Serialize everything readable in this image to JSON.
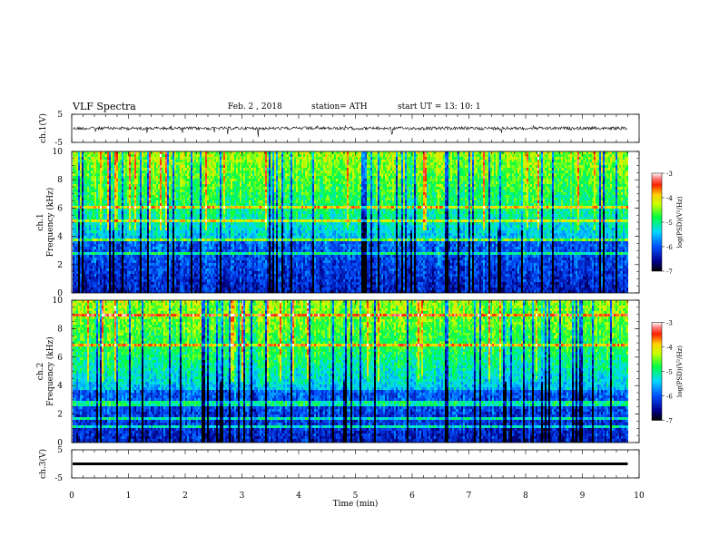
{
  "header": {
    "title": "VLF Spectra",
    "date": "Feb. 2 , 2018",
    "station": "station= ATH",
    "start": "start UT =   13: 10: 1"
  },
  "chart_data": [
    {
      "type": "line",
      "panel": "ch1-waveform",
      "ylabel": "ch.1(V)",
      "ylim": [
        -5,
        5
      ],
      "yticks": [
        -5,
        5
      ],
      "xlim": [
        0,
        10
      ],
      "baseline": 0,
      "x_end": 9.8,
      "color": "#000000"
    },
    {
      "type": "heatmap",
      "panel": "ch1-spectrogram",
      "ylabel": "ch.1\nFrequency  (kHz)",
      "ylim": [
        0,
        10
      ],
      "yticks": [
        0,
        2,
        4,
        6,
        8,
        10
      ],
      "xlim": [
        0,
        10
      ],
      "x_end": 9.8,
      "colorbar": {
        "label": "log(PSD)(V²/Hz)",
        "range": [
          -7,
          -3
        ],
        "ticks": [
          -3,
          -4,
          -5,
          -6,
          -7
        ]
      }
    },
    {
      "type": "heatmap",
      "panel": "ch2-spectrogram",
      "ylabel": "ch.2\nFrequency  (kHz)",
      "ylim": [
        0,
        10
      ],
      "yticks": [
        0,
        2,
        4,
        6,
        8,
        10
      ],
      "xlim": [
        0,
        10
      ],
      "x_end": 9.8,
      "colorbar": {
        "label": "log(PSD)(V²/Hz)",
        "range": [
          -7,
          -3
        ],
        "ticks": [
          -3,
          -4,
          -5,
          -6,
          -7
        ]
      }
    },
    {
      "type": "line",
      "panel": "ch3-waveform",
      "ylabel": "ch.3(V)",
      "ylim": [
        -5,
        5
      ],
      "yticks": [
        -5,
        5
      ],
      "xlim": [
        0,
        10
      ],
      "value": 0,
      "x_end": 9.8,
      "color": "#000000"
    }
  ],
  "xaxis": {
    "label": "Time  (min)",
    "ticks": [
      "0",
      "1",
      "2",
      "3",
      "4",
      "5",
      "6",
      "7",
      "8",
      "9",
      "10"
    ]
  }
}
